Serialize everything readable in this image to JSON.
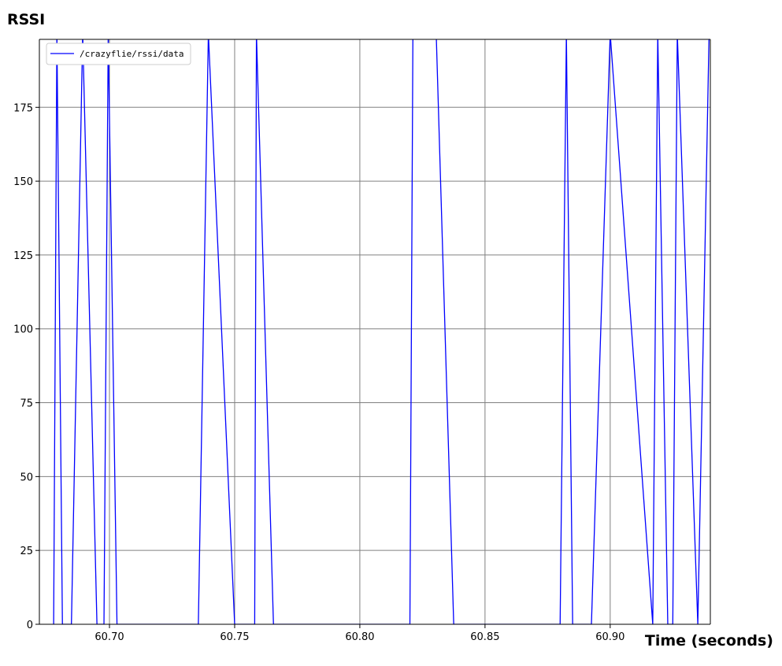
{
  "chart_data": {
    "type": "line",
    "title": "",
    "ylabel": "RSSI",
    "xlabel": "Time (seconds)",
    "xlim": [
      60.672,
      60.94
    ],
    "ylim": [
      0,
      198
    ],
    "grid": true,
    "legend_position": "top-left",
    "x_ticks": [
      60.7,
      60.75,
      60.8,
      60.85,
      60.9
    ],
    "x_tick_labels": [
      "60.70",
      "60.75",
      "60.80",
      "60.85",
      "60.90"
    ],
    "y_ticks": [
      0,
      25,
      50,
      75,
      100,
      125,
      150,
      175
    ],
    "y_tick_labels": [
      "0",
      "25",
      "50",
      "75",
      "100",
      "125",
      "150",
      "175"
    ],
    "colors": {
      "line": "#0000ff",
      "grid": "#808080",
      "axis": "#000000"
    },
    "series": [
      {
        "name": "/crazyflie/rssi/data",
        "x": [
          60.6777,
          60.679,
          60.6812,
          60.6848,
          60.6893,
          60.695,
          60.6978,
          60.6995,
          60.703,
          60.7355,
          60.7395,
          60.75,
          60.758,
          60.7587,
          60.7655,
          60.82,
          60.8212,
          60.8305,
          60.8375,
          60.88,
          60.8825,
          60.885,
          60.8925,
          60.9,
          60.917,
          60.919,
          60.923,
          60.925,
          60.9268,
          60.935,
          60.9395
        ],
        "values": [
          0,
          200,
          0,
          0,
          200,
          0,
          0,
          200,
          0,
          0,
          200,
          0,
          0,
          200,
          0,
          0,
          200,
          200,
          0,
          0,
          200,
          0,
          0,
          200,
          0,
          200,
          0,
          0,
          200,
          0,
          200
        ]
      }
    ]
  }
}
